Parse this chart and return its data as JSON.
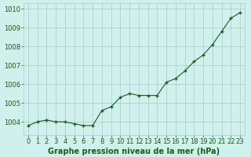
{
  "x": [
    0,
    1,
    2,
    3,
    4,
    5,
    6,
    7,
    8,
    9,
    10,
    11,
    12,
    13,
    14,
    15,
    16,
    17,
    18,
    19,
    20,
    21,
    22,
    23
  ],
  "y": [
    1003.8,
    1004.0,
    1004.1,
    1004.0,
    1004.0,
    1003.9,
    1003.8,
    1003.8,
    1004.6,
    1004.8,
    1005.3,
    1005.5,
    1005.4,
    1005.4,
    1005.4,
    1006.1,
    1006.3,
    1006.7,
    1007.2,
    1007.55,
    1008.1,
    1008.8,
    1009.5,
    1009.8
  ],
  "xlim": [
    -0.5,
    23.5
  ],
  "ylim": [
    1003.3,
    1010.3
  ],
  "yticks": [
    1004,
    1005,
    1006,
    1007,
    1008,
    1009,
    1010
  ],
  "xticks": [
    0,
    1,
    2,
    3,
    4,
    5,
    6,
    7,
    8,
    9,
    10,
    11,
    12,
    13,
    14,
    15,
    16,
    17,
    18,
    19,
    20,
    21,
    22,
    23
  ],
  "xlabel": "Graphe pression niveau de la mer (hPa)",
  "line_color": "#1a5c1a",
  "marker_color": "#1a5c1a",
  "bg_color": "#cff0ec",
  "grid_color": "#a8ccc8",
  "tick_label_color": "#1a5c1a",
  "xlabel_color": "#1a5c1a",
  "xlabel_fontsize": 7.0,
  "tick_fontsize": 6.0
}
